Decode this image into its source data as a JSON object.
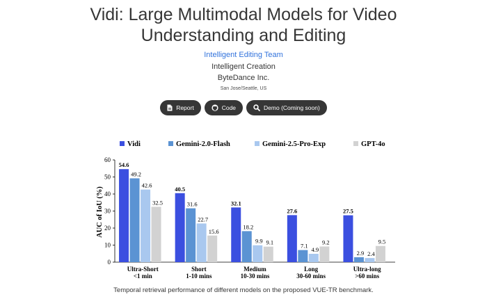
{
  "header": {
    "title_line1": "Vidi: Large Multimodal Models for Video",
    "title_line2": "Understanding and Editing",
    "team": "Intelligent Editing Team",
    "affiliation1": "Intelligent Creation",
    "affiliation2": "ByteDance Inc.",
    "location": "San Jose/Seattle, US"
  },
  "buttons": {
    "report": "Report",
    "code": "Code",
    "demo": "Demo (Coming soon)"
  },
  "icons": [
    "file-icon",
    "github-icon",
    "search-icon"
  ],
  "colors": {
    "button_bg": "#363636",
    "link": "#3273dc",
    "vidi": "#3b4fe0",
    "gemini_2_0_flash": "#5b93d3",
    "gemini_2_5_pro_exp": "#a9c8ef",
    "gpt_4o": "#d2d2d2"
  },
  "chart_data": {
    "type": "bar",
    "ylabel": "AUC of IoU (%)",
    "ylim": [
      0,
      60
    ],
    "yticks": [
      0,
      10,
      20,
      30,
      40,
      50,
      60
    ],
    "legend_position": "top",
    "categories": [
      [
        "Ultra-Short",
        "<1 min"
      ],
      [
        "Short",
        "1-10 mins"
      ],
      [
        "Medium",
        "10-30 mins"
      ],
      [
        "Long",
        "30-60 mins"
      ],
      [
        "Ultra-long",
        ">60 mins"
      ]
    ],
    "series": [
      {
        "name": "Vidi",
        "values": [
          54.6,
          40.5,
          32.1,
          27.6,
          27.5
        ],
        "bold_labels": true
      },
      {
        "name": "Gemini-2.0-Flash",
        "values": [
          49.2,
          31.6,
          18.2,
          7.1,
          2.9
        ]
      },
      {
        "name": "Gemini-2.5-Pro-Exp",
        "values": [
          42.6,
          22.7,
          9.9,
          4.9,
          2.4
        ]
      },
      {
        "name": "GPT-4o",
        "values": [
          32.5,
          15.6,
          9.1,
          9.2,
          9.5
        ]
      }
    ]
  },
  "caption": "Temporal retrieval performance of different models on the proposed VUE-TR benchmark."
}
